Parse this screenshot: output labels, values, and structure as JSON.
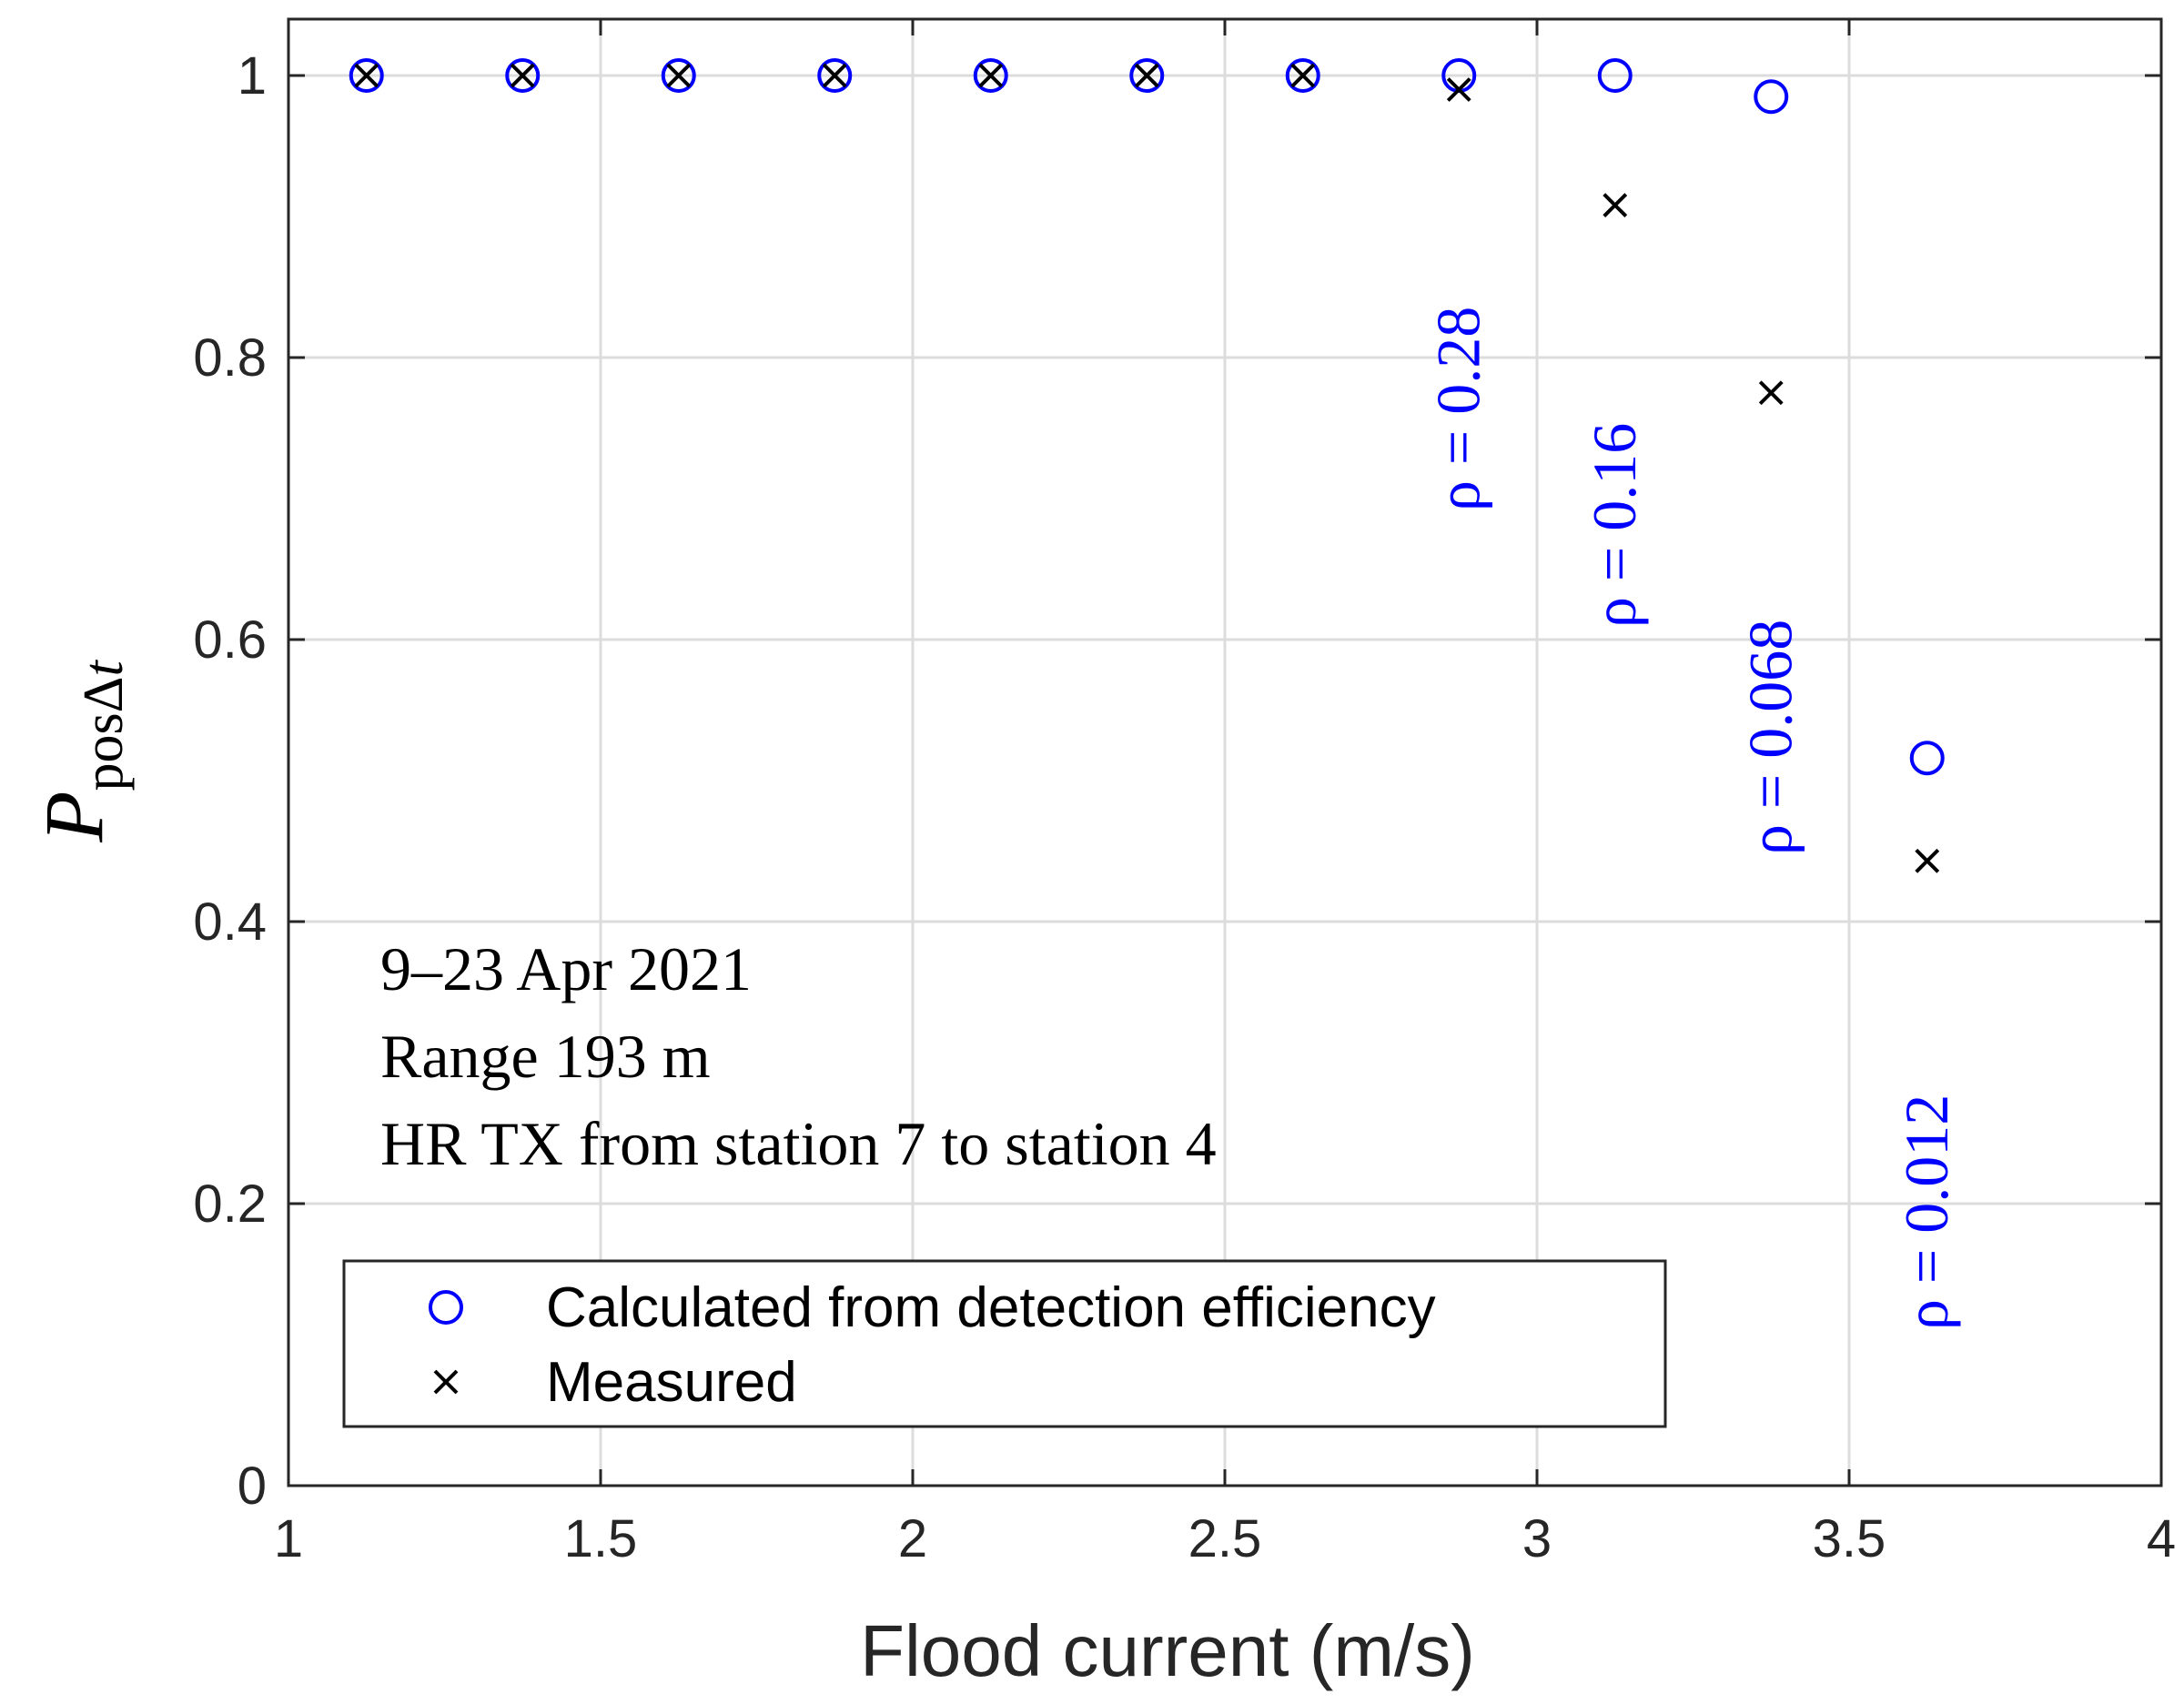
{
  "chart_data": {
    "type": "scatter",
    "xlabel": "Flood current (m/s)",
    "ylabel": {
      "main": "P",
      "sub": "pos",
      "delta": "Δ",
      "t": "t"
    },
    "xlim": [
      1,
      4
    ],
    "ylim": [
      0,
      1.04
    ],
    "xticks": [
      1,
      1.5,
      2,
      2.5,
      3,
      3.5,
      4
    ],
    "xtick_labels": [
      "1",
      "1.5",
      "2",
      "2.5",
      "3",
      "3.5",
      "4"
    ],
    "yticks": [
      0,
      0.2,
      0.4,
      0.6,
      0.8,
      1
    ],
    "ytick_labels": [
      "0",
      "0.2",
      "0.4",
      "0.6",
      "0.8",
      "1"
    ],
    "grid": true,
    "series": [
      {
        "name": "Calculated from detection efficiency",
        "marker": "circle",
        "color": "#0000ff",
        "x": [
          1.125,
          1.375,
          1.625,
          1.875,
          2.125,
          2.375,
          2.625,
          2.875,
          3.125,
          3.375,
          3.625
        ],
        "y": [
          1.0,
          1.0,
          1.0,
          1.0,
          1.0,
          1.0,
          1.0,
          1.0,
          1.0,
          0.985,
          0.516
        ]
      },
      {
        "name": "Measured",
        "marker": "x",
        "color": "#000000",
        "x": [
          1.125,
          1.375,
          1.625,
          1.875,
          2.125,
          2.375,
          2.625,
          2.875,
          3.125,
          3.375,
          3.625
        ],
        "y": [
          1.0,
          1.0,
          1.0,
          1.0,
          1.0,
          1.0,
          1.0,
          0.99,
          0.908,
          0.775,
          0.443
        ]
      }
    ],
    "annotations": [
      {
        "text": "ρ = 0.28",
        "x": 2.875
      },
      {
        "text": "ρ = 0.16",
        "x": 3.125
      },
      {
        "text": "ρ = 0.068",
        "x": 3.375
      },
      {
        "text": "ρ = 0.012",
        "x": 3.625
      }
    ],
    "info_lines": [
      "9–23 Apr 2021",
      "Range 193 m",
      "HR TX from station 7 to station 4"
    ],
    "legend_location": "bottom-left"
  }
}
